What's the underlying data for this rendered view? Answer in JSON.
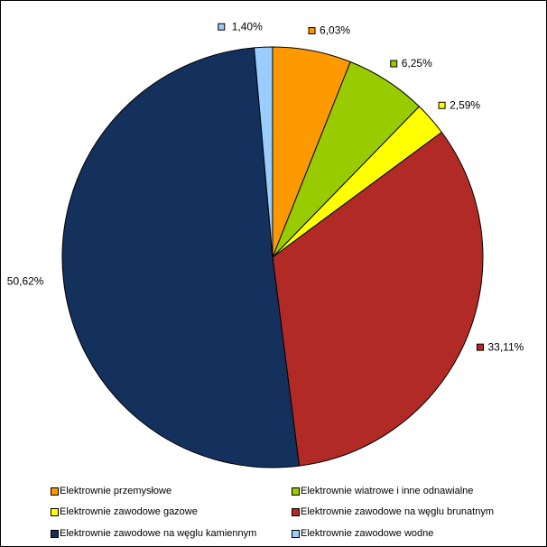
{
  "chart_data": {
    "type": "pie",
    "title": "",
    "slices": [
      {
        "name": "Elektrownie przemysłowe",
        "value": 6.03,
        "label": "6,03%",
        "color": "#ff9900"
      },
      {
        "name": "Elektrownie wiatrowe i inne odnawialne",
        "value": 6.25,
        "label": "6,25%",
        "color": "#99cc00"
      },
      {
        "name": "Elektrownie zawodowe gazowe",
        "value": 2.59,
        "label": "2,59%",
        "color": "#ffff00"
      },
      {
        "name": "Elektrownie zawodowe na węglu brunatnym",
        "value": 33.11,
        "label": "33,11%",
        "color": "#b22a26"
      },
      {
        "name": "Elektrownie zawodowe na węglu kamiennym",
        "value": 50.62,
        "label": "50,62%",
        "color": "#14305c"
      },
      {
        "name": "Elektrownie zawodowe wodne",
        "value": 1.4,
        "label": "1,40%",
        "color": "#99ccff"
      }
    ],
    "legend_placement": "bottom"
  },
  "legend": [
    "Elektrownie przemysłowe",
    "Elektrownie wiatrowe i inne odnawialne",
    "Elektrownie zawodowe gazowe",
    "Elektrownie zawodowe na węglu brunatnym",
    "Elektrownie zawodowe na węglu kamiennym",
    "Elektrownie zawodowe wodne"
  ]
}
